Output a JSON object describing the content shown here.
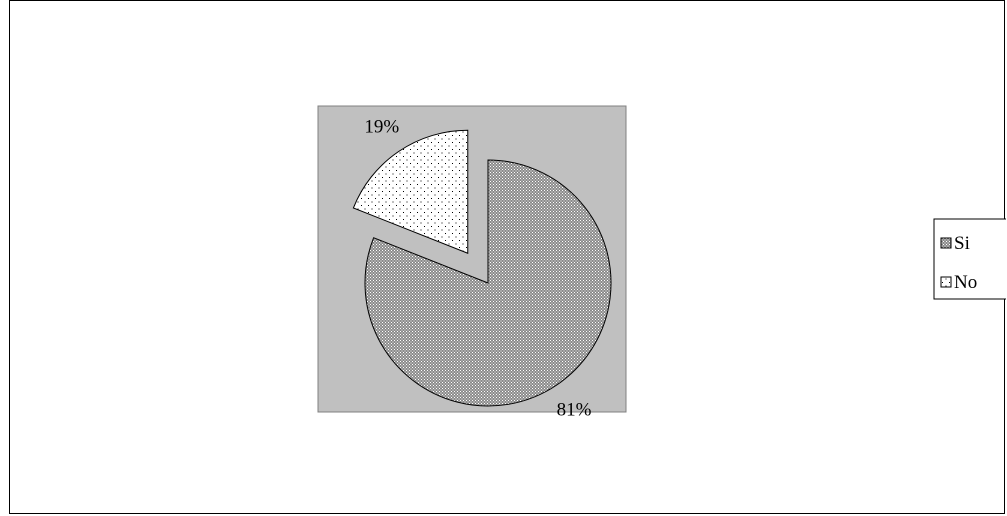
{
  "chart_data": {
    "type": "pie",
    "categories": [
      "Si",
      "No"
    ],
    "values": [
      81,
      19
    ],
    "labels": [
      "81%",
      "19%"
    ],
    "exploded": [
      false,
      true
    ],
    "legend_position": "right",
    "plot_background": "#c0c0c0",
    "slice_patterns": [
      "dense-crosshatch",
      "sparse-dots"
    ],
    "title": "",
    "legend": [
      {
        "label": "Si",
        "pattern": "dense-crosshatch"
      },
      {
        "label": "No",
        "pattern": "sparse-dots"
      }
    ]
  }
}
